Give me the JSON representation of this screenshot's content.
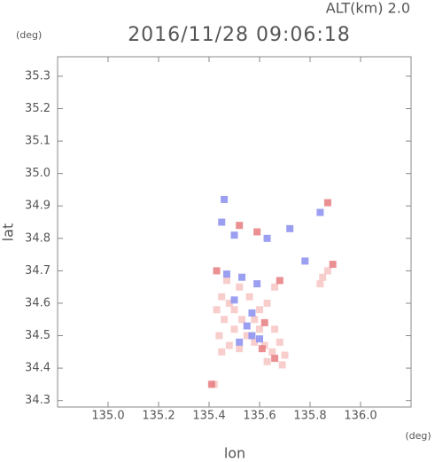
{
  "chart_data": {
    "type": "scatter",
    "title": "2016/11/28 09:06:18",
    "subtitle": "ALT(km) 2.0",
    "y_unit": "(deg)",
    "x_unit": "(deg)",
    "x_label": "lon",
    "y_label": "lat",
    "xlim": [
      134.8,
      136.2
    ],
    "ylim": [
      34.28,
      35.36
    ],
    "xticks": [
      {
        "value": 135,
        "label": "135.0"
      },
      135.2,
      135.4,
      135.6,
      135.8,
      {
        "value": 136,
        "label": "136.0"
      }
    ],
    "yticks": [
      34.3,
      34.4,
      34.5,
      34.6,
      34.7,
      34.8,
      34.9,
      {
        "value": 35,
        "label": "35.0"
      },
      35.1,
      35.2,
      35.3
    ],
    "series": [
      {
        "color": "#f7c6c4",
        "x": [
          135.45,
          135.48,
          135.5,
          135.46,
          135.5,
          135.53,
          135.55,
          135.58,
          135.6,
          135.62,
          135.65,
          135.68,
          135.7,
          135.66,
          135.6,
          135.56,
          135.52,
          135.47,
          135.43,
          135.44,
          135.48,
          135.52,
          135.58,
          135.63,
          135.66,
          135.45,
          135.85,
          135.87,
          135.84,
          135.42,
          135.63,
          135.69
        ],
        "values": [
          34.62,
          34.6,
          34.58,
          34.55,
          34.52,
          34.55,
          34.5,
          34.48,
          34.52,
          34.47,
          34.45,
          34.48,
          34.44,
          34.52,
          34.58,
          34.62,
          34.65,
          34.67,
          34.58,
          34.5,
          34.47,
          34.46,
          34.55,
          34.6,
          34.65,
          34.45,
          34.68,
          34.7,
          34.66,
          34.35,
          34.42,
          34.41
        ]
      },
      {
        "color": "#e67c80",
        "x": [
          135.68,
          135.43,
          135.52,
          135.59,
          135.61,
          135.66,
          135.41,
          135.62,
          135.87,
          135.89
        ],
        "values": [
          34.67,
          34.7,
          34.84,
          34.82,
          34.46,
          34.43,
          34.35,
          34.54,
          34.91,
          34.72
        ]
      },
      {
        "color": "#8a8ef0",
        "x": [
          135.47,
          135.53,
          135.59,
          135.5,
          135.57,
          135.55,
          135.52,
          135.6,
          135.45,
          135.5,
          135.63,
          135.72,
          135.84,
          135.46,
          135.57,
          135.78
        ],
        "values": [
          34.69,
          34.68,
          34.66,
          34.61,
          34.57,
          34.53,
          34.48,
          34.49,
          34.85,
          34.81,
          34.8,
          34.83,
          34.88,
          34.92,
          34.5,
          34.73
        ]
      }
    ]
  }
}
